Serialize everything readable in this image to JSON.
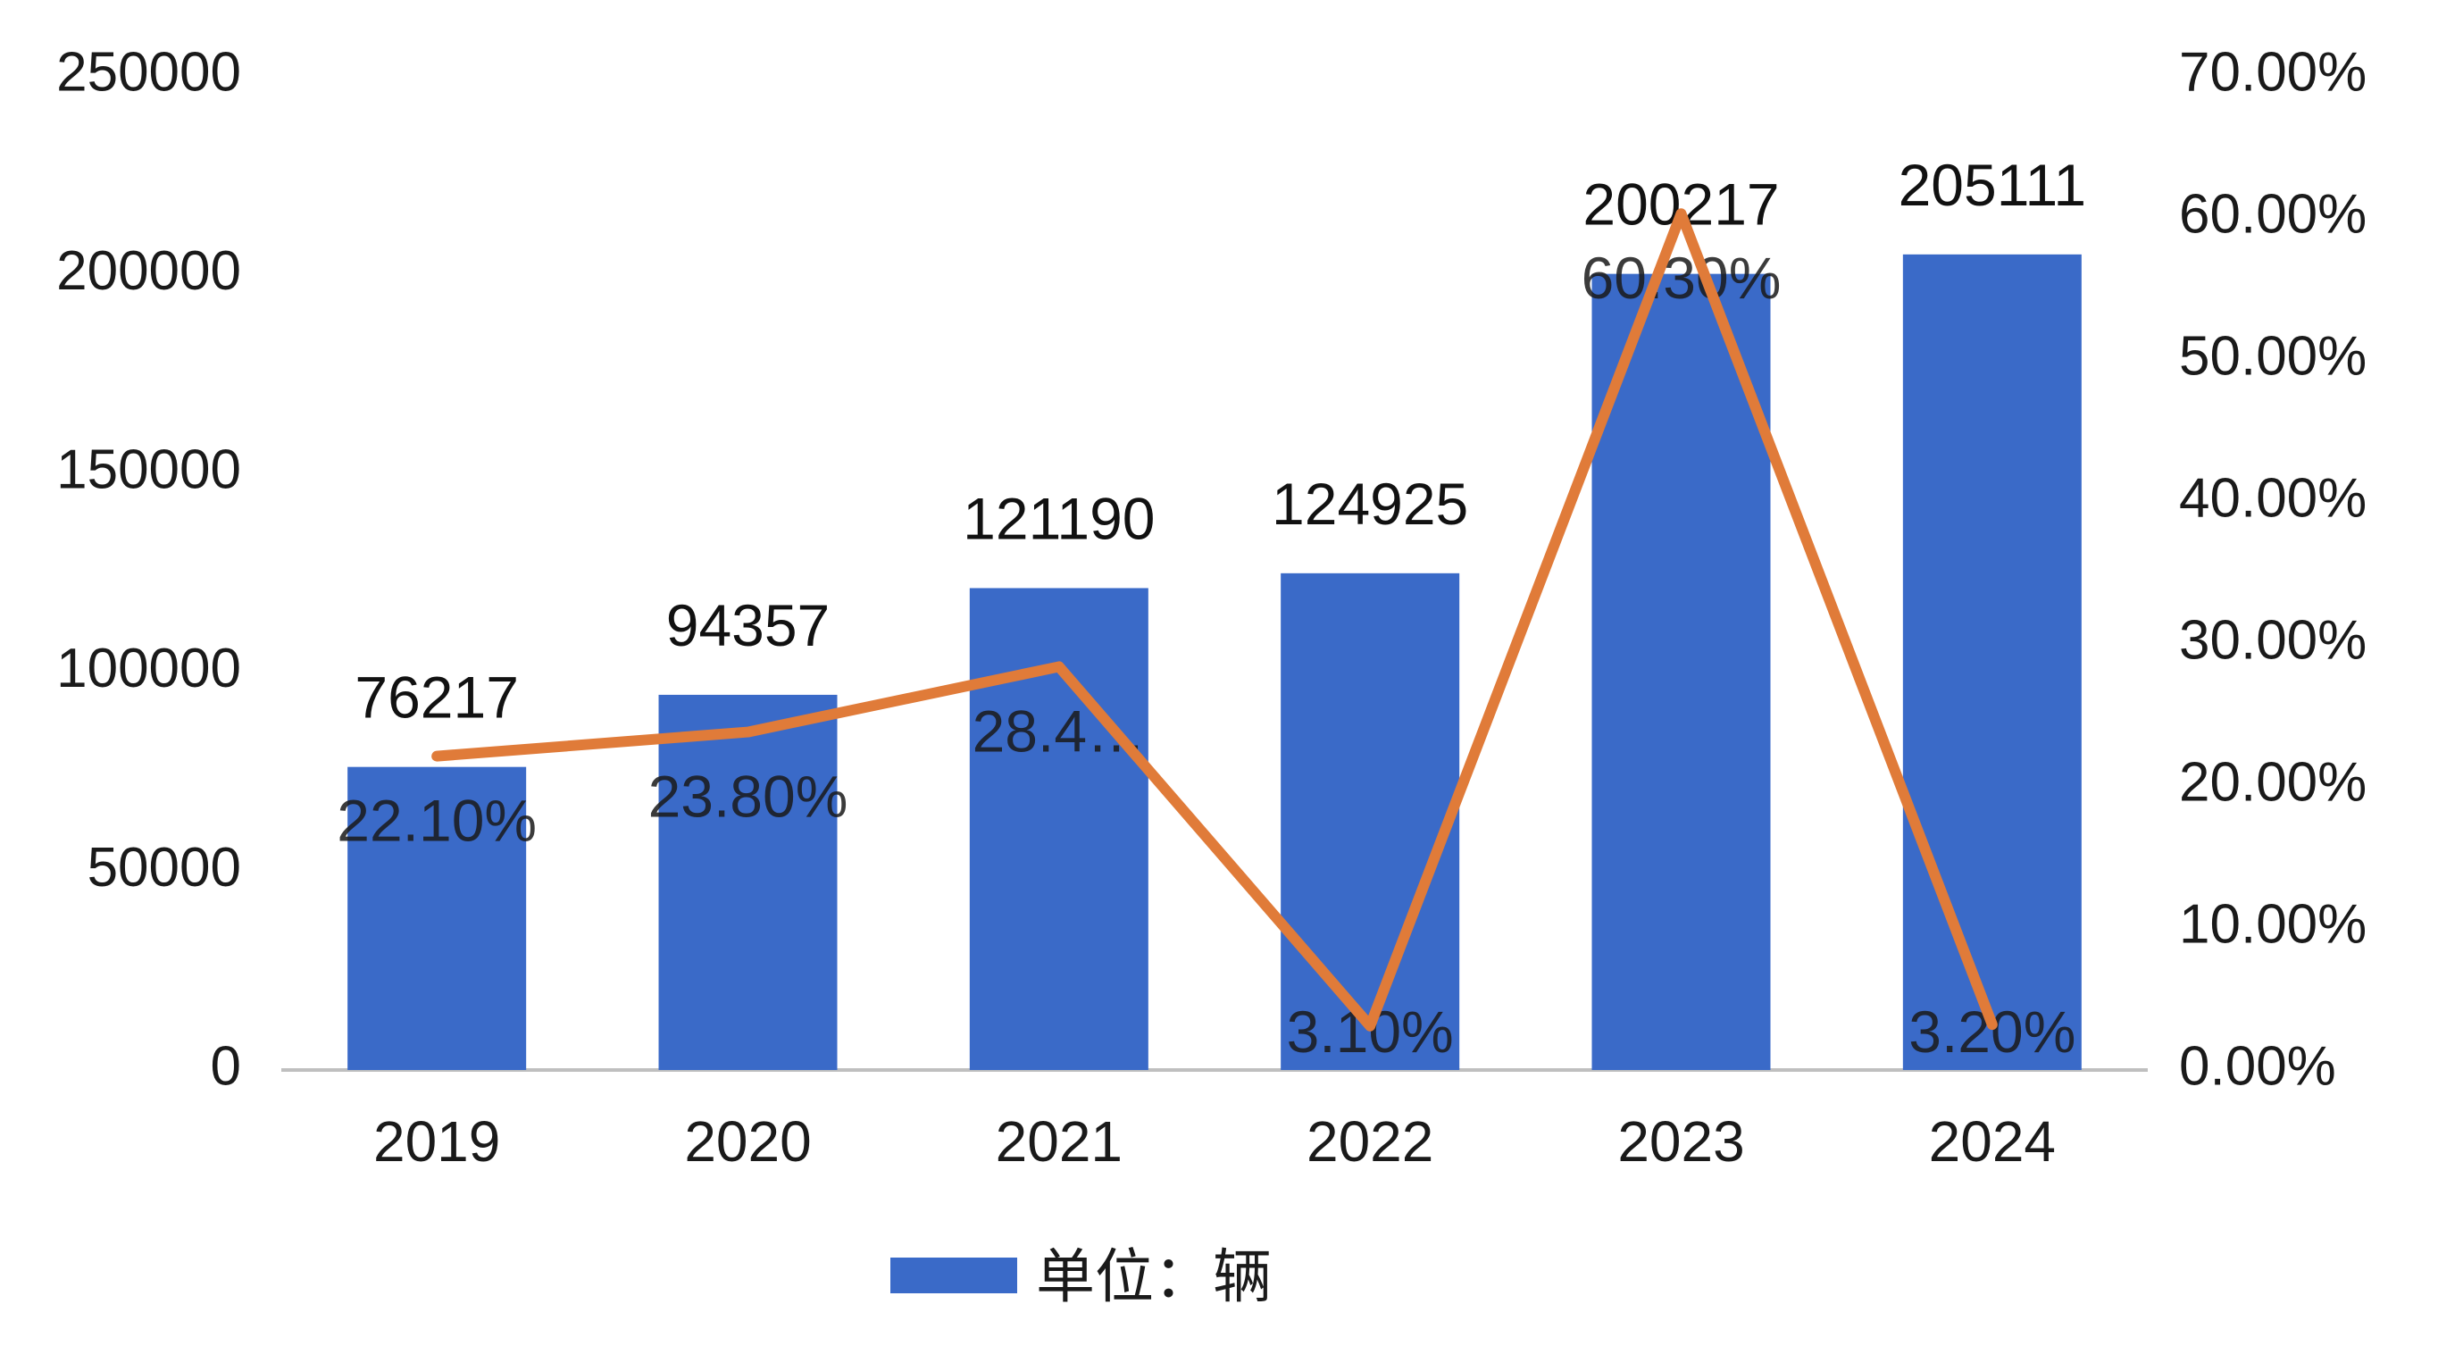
{
  "chart_data": {
    "type": "bar",
    "categories": [
      "2019",
      "2020",
      "2021",
      "2022",
      "2023",
      "2024"
    ],
    "series": [
      {
        "name": "单位：辆",
        "type": "bar",
        "axis": "left",
        "values": [
          76217,
          94357,
          121190,
          124925,
          200217,
          205111
        ],
        "value_labels": [
          "76217",
          "94357",
          "121190",
          "124925",
          "200217",
          "205111"
        ]
      },
      {
        "type": "line",
        "axis": "right",
        "values": [
          22.1,
          23.8,
          28.4,
          3.1,
          60.3,
          3.2
        ],
        "value_labels": [
          "22.10%",
          "23.80%",
          "28.4…",
          "3.10%",
          "60.30%",
          "3.20%"
        ]
      }
    ],
    "left_axis": {
      "ylim": [
        0,
        250000
      ],
      "ticks": [
        0,
        50000,
        100000,
        150000,
        200000,
        250000
      ],
      "tick_labels": [
        "0",
        "50000",
        "100000",
        "150000",
        "200000",
        "250000"
      ]
    },
    "right_axis": {
      "ylim": [
        0,
        70
      ],
      "ticks": [
        0,
        10,
        20,
        30,
        40,
        50,
        60,
        70
      ],
      "tick_labels": [
        "0.00%",
        "10.00%",
        "20.00%",
        "30.00%",
        "40.00%",
        "50.00%",
        "60.00%",
        "70.00%"
      ]
    },
    "grid": false,
    "legend": {
      "position": "bottom-center",
      "entries": [
        "单位：辆"
      ]
    },
    "colors": {
      "bar": "#3A6AC8",
      "line": "#E07B39",
      "axis": "#BFBFBF"
    }
  }
}
